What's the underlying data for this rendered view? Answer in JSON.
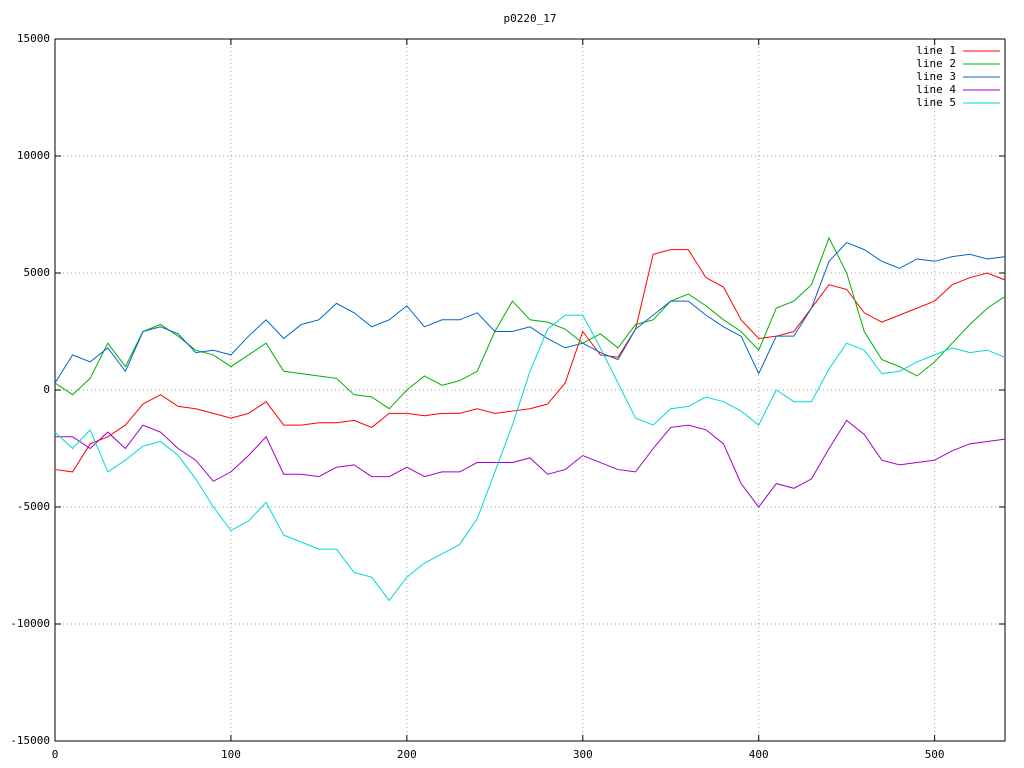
{
  "chart_data": {
    "type": "line",
    "title": "p0220_17",
    "x": [
      0,
      10,
      20,
      30,
      40,
      50,
      60,
      70,
      80,
      90,
      100,
      110,
      120,
      130,
      140,
      150,
      160,
      170,
      180,
      190,
      200,
      210,
      220,
      230,
      240,
      250,
      260,
      270,
      280,
      290,
      300,
      310,
      320,
      330,
      340,
      350,
      360,
      370,
      380,
      390,
      400,
      410,
      420,
      430,
      440,
      450,
      460,
      470,
      480,
      490,
      500,
      510,
      520,
      530,
      540
    ],
    "series": [
      {
        "name": "line 1",
        "color": "#ff0000",
        "values": [
          -3400,
          -3500,
          -2300,
          -2000,
          -1500,
          -600,
          -200,
          -700,
          -800,
          -1000,
          -1200,
          -1000,
          -500,
          -1500,
          -1500,
          -1400,
          -1400,
          -1300,
          -1600,
          -1000,
          -1000,
          -1100,
          -1000,
          -1000,
          -800,
          -1000,
          -900,
          -800,
          -600,
          300,
          2500,
          1500,
          1400,
          2600,
          5800,
          6000,
          6000,
          4800,
          4400,
          3000,
          2200,
          2300,
          2500,
          3500,
          4500,
          4300,
          3300,
          2900,
          3200,
          3500,
          3800,
          4500,
          4800,
          5000,
          4700
        ]
      },
      {
        "name": "line 2",
        "color": "#00b000",
        "values": [
          300,
          -200,
          500,
          2000,
          1000,
          2500,
          2800,
          2300,
          1700,
          1500,
          1000,
          1500,
          2000,
          800,
          700,
          600,
          500,
          -200,
          -300,
          -800,
          0,
          600,
          200,
          400,
          800,
          2500,
          3800,
          3000,
          2900,
          2600,
          2000,
          2400,
          1800,
          2800,
          3000,
          3800,
          4100,
          3600,
          3000,
          2500,
          1700,
          3500,
          3800,
          4500,
          6500,
          5000,
          2500,
          1300,
          1000,
          600,
          1200,
          2000,
          2800,
          3500,
          4000
        ]
      },
      {
        "name": "line 3",
        "color": "#0066cc",
        "values": [
          300,
          1500,
          1200,
          1800,
          800,
          2500,
          2700,
          2400,
          1600,
          1700,
          1500,
          2300,
          3000,
          2200,
          2800,
          3000,
          3700,
          3300,
          2700,
          3000,
          3600,
          2700,
          3000,
          3000,
          3300,
          2500,
          2500,
          2700,
          2200,
          1800,
          2000,
          1600,
          1300,
          2600,
          3200,
          3800,
          3800,
          3200,
          2700,
          2300,
          700,
          2300,
          2300,
          3500,
          5500,
          6300,
          6000,
          5500,
          5200,
          5600,
          5500,
          5700,
          5800,
          5600,
          5700
        ]
      },
      {
        "name": "line 4",
        "color": "#a000c8",
        "values": [
          -2000,
          -2000,
          -2500,
          -1800,
          -2500,
          -1500,
          -1800,
          -2500,
          -3000,
          -3900,
          -3500,
          -2800,
          -2000,
          -3600,
          -3600,
          -3700,
          -3300,
          -3200,
          -3700,
          -3700,
          -3300,
          -3700,
          -3500,
          -3500,
          -3100,
          -3100,
          -3100,
          -2900,
          -3600,
          -3400,
          -2800,
          -3100,
          -3400,
          -3500,
          -2500,
          -1600,
          -1500,
          -1700,
          -2300,
          -4000,
          -5000,
          -4000,
          -4200,
          -3800,
          -2500,
          -1300,
          -1900,
          -3000,
          -3200,
          -3100,
          -3000,
          -2600,
          -2300,
          -2200,
          -2100
        ]
      },
      {
        "name": "line 5",
        "color": "#00d8d8",
        "values": [
          -1800,
          -2500,
          -1700,
          -3500,
          -3000,
          -2400,
          -2200,
          -2800,
          -3800,
          -5000,
          -6000,
          -5600,
          -4800,
          -6200,
          -6500,
          -6800,
          -6800,
          -7800,
          -8000,
          -9000,
          -8000,
          -7400,
          -7000,
          -6600,
          -5500,
          -3500,
          -1500,
          800,
          2600,
          3200,
          3200,
          1800,
          300,
          -1200,
          -1500,
          -800,
          -700,
          -300,
          -500,
          -900,
          -1500,
          0,
          -500,
          -500,
          900,
          2000,
          1700,
          700,
          800,
          1200,
          1500,
          1800,
          1600,
          1700,
          1400
        ]
      }
    ],
    "xlim": [
      0,
      540
    ],
    "xticks": [
      0,
      100,
      200,
      300,
      400,
      500
    ],
    "ylim": [
      -15000,
      15000
    ],
    "yticks": [
      -15000,
      -10000,
      -5000,
      0,
      5000,
      10000,
      15000
    ],
    "grid": true,
    "legend": "top-right"
  }
}
